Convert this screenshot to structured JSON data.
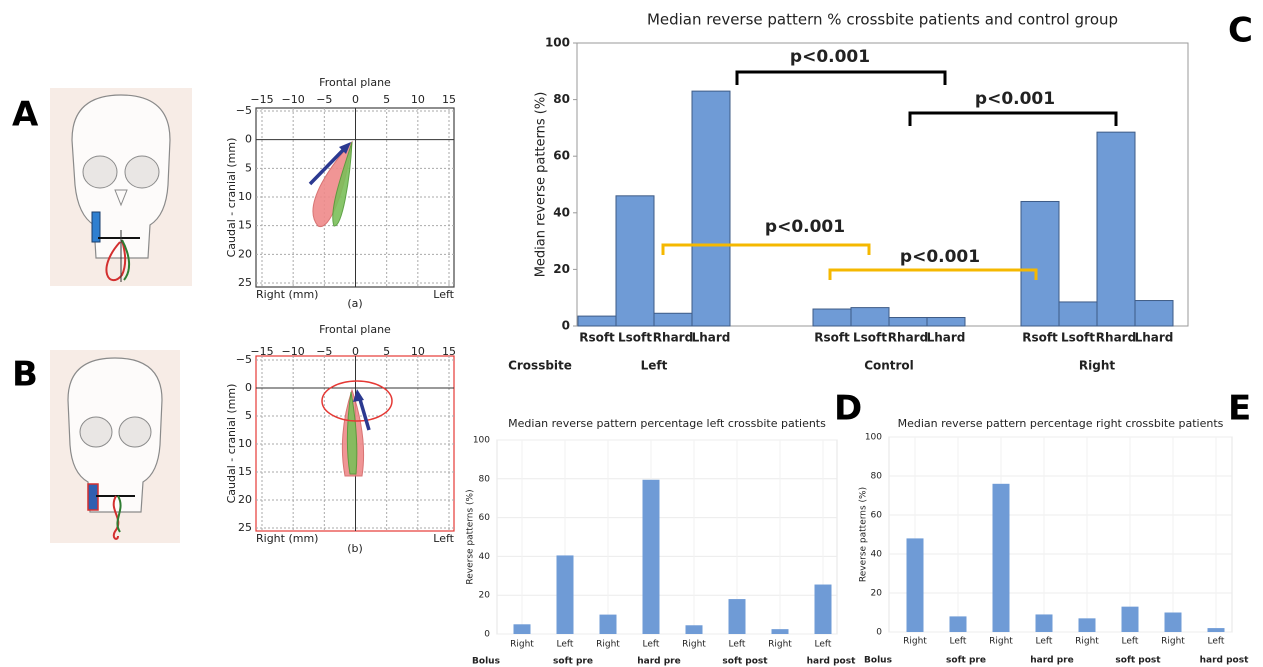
{
  "panel_labels": [
    "A",
    "B",
    "C",
    "D",
    "E"
  ],
  "chart_data": [
    {
      "type": "trajectory",
      "title": "Frontal plane",
      "y_label": "Caudal - cranial (mm)",
      "x_label": "Right (mm)",
      "x_label_right": "Left",
      "caption": "(a)",
      "xlim": [
        -15,
        15
      ],
      "ylim": [
        -5,
        25
      ],
      "y_inverted": true,
      "grid": true,
      "frame_color": "#444444",
      "xticks": [
        {
          "value": -15,
          "label": "−15"
        },
        {
          "value": -10,
          "label": "−10"
        },
        {
          "value": -5,
          "label": "−5"
        },
        0,
        5,
        10,
        15
      ],
      "yticks": [
        {
          "value": -5,
          "label": "−5"
        },
        0,
        5,
        10,
        15,
        20,
        25
      ]
    },
    {
      "type": "trajectory",
      "title": "Frontal plane",
      "y_label": "Caudal - cranial (mm)",
      "x_label": "Right (mm)",
      "x_label_right": "Left",
      "caption": "(b)",
      "xlim": [
        -15,
        15
      ],
      "ylim": [
        -5,
        25
      ],
      "y_inverted": true,
      "grid": true,
      "frame_color": "#e53935",
      "xticks": [
        {
          "value": -15,
          "label": "−15"
        },
        {
          "value": -10,
          "label": "−10"
        },
        {
          "value": -5,
          "label": "−5"
        },
        0,
        5,
        10,
        15
      ],
      "yticks": [
        {
          "value": -5,
          "label": "−5"
        },
        0,
        5,
        10,
        15,
        20,
        25
      ]
    },
    {
      "type": "bar",
      "title": "Median reverse pattern % crossbite patients and control group",
      "y_label": "Median reverse patterns (%)",
      "x_title": "Crossbite",
      "categories": [
        "Rsoft",
        "Lsoft",
        "Rhard",
        "Lhard",
        "Rsoft",
        "Lsoft",
        "Rhard",
        "Lhard",
        "Rsoft",
        "Lsoft",
        "Rhard",
        "Lhard"
      ],
      "groups": [
        "Left",
        "Control",
        "Right"
      ],
      "values": [
        3.5,
        46,
        4.5,
        83,
        6,
        6.5,
        3,
        3,
        44,
        8.5,
        68.5,
        9
      ],
      "color": "#6f9bd6",
      "ylim": [
        0,
        100
      ],
      "yticks": [
        0,
        20,
        40,
        60,
        80,
        100
      ],
      "grid": false,
      "annotations": [
        {
          "text": "p<0.001",
          "color": "#000000"
        },
        {
          "text": "p<0.001",
          "color": "#000000"
        },
        {
          "text": "p<0.001",
          "color": "#f5b800"
        },
        {
          "text": "p<0.001",
          "color": "#f5b800"
        }
      ]
    },
    {
      "type": "bar",
      "title": "Median reverse pattern percentage left crossbite patients",
      "y_label": "Reverse patterns (%)",
      "x_title": "Bolus",
      "categories": [
        "Right",
        "Left",
        "Right",
        "Left",
        "Right",
        "Left",
        "Right",
        "Left"
      ],
      "groups": [
        "soft pre",
        "hard pre",
        "soft post",
        "hard post"
      ],
      "values": [
        5,
        40.5,
        10,
        79.5,
        4.5,
        18,
        2.5,
        25.5
      ],
      "color": "#6f9bd6",
      "ylim": [
        0,
        100
      ],
      "yticks": [
        0,
        20,
        40,
        60,
        80,
        100
      ],
      "grid": true
    },
    {
      "type": "bar",
      "title": "Median reverse pattern percentage right crossbite patients",
      "y_label": "Reverse patterns (%)",
      "x_title": "Bolus",
      "categories": [
        "Right",
        "Left",
        "Right",
        "Left",
        "Right",
        "Left",
        "Right",
        "Left"
      ],
      "groups": [
        "soft pre",
        "hard pre",
        "soft post",
        "hard post"
      ],
      "values": [
        48,
        8,
        76,
        9,
        7,
        13,
        10,
        2
      ],
      "color": "#6f9bd6",
      "ylim": [
        0,
        100
      ],
      "yticks": [
        0,
        20,
        40,
        60,
        80,
        100
      ],
      "grid": true
    }
  ]
}
